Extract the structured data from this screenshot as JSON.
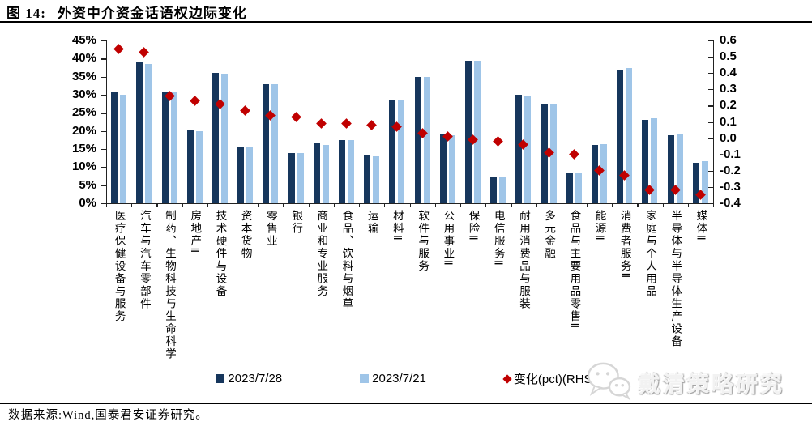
{
  "figure": {
    "label": "图 14:",
    "title": "外资中介资金话语权边际变化"
  },
  "chart_data": {
    "type": "bar",
    "title": "外资中介资金话语权边际变化",
    "grid": false,
    "legend_position": "bottom",
    "categories": [
      "医疗保健设备与服务",
      "汽车与汽车零部件",
      "制药、生物科技与生命科学",
      "房地产Ⅱ",
      "技术硬件与设备",
      "资本货物",
      "零售业",
      "银行",
      "商业和专业服务",
      "食品、饮料与烟草",
      "运输",
      "材料Ⅱ",
      "软件与服务",
      "公用事业Ⅱ",
      "保险Ⅱ",
      "电信服务Ⅱ",
      "耐用消费品与服装",
      "多元金融",
      "食品与主要用品零售Ⅱ",
      "能源Ⅱ",
      "消费者服务Ⅱ",
      "家庭与个人用品",
      "半导体与半导体生产设备",
      "媒体Ⅱ"
    ],
    "series": [
      {
        "name": "2023/7/28",
        "kind": "bar",
        "axis": "left",
        "unit": "%",
        "color": "#16365c",
        "values": [
          30.6,
          39.0,
          30.8,
          20.1,
          36.0,
          15.5,
          33.0,
          13.9,
          16.5,
          17.5,
          13.1,
          28.5,
          35.0,
          19.0,
          39.5,
          7.2,
          29.9,
          27.6,
          8.5,
          16.1,
          36.9,
          23.1,
          18.7,
          11.2
        ]
      },
      {
        "name": "2023/7/21",
        "kind": "bar",
        "axis": "left",
        "unit": "%",
        "color": "#9fc5e8",
        "values": [
          30.0,
          38.4,
          30.6,
          19.9,
          35.8,
          15.4,
          32.8,
          13.8,
          16.2,
          17.4,
          13.0,
          28.4,
          34.9,
          18.8,
          39.4,
          7.2,
          29.7,
          27.5,
          8.6,
          16.4,
          37.3,
          23.5,
          19.1,
          11.6
        ]
      },
      {
        "name": "变化(pct)(RHS)",
        "kind": "scatter-diamond",
        "axis": "right",
        "color": "#c00000",
        "values": [
          0.55,
          0.53,
          0.26,
          0.23,
          0.21,
          0.17,
          0.14,
          0.13,
          0.09,
          0.09,
          0.08,
          0.07,
          0.03,
          0.01,
          -0.01,
          -0.02,
          -0.04,
          -0.09,
          -0.1,
          -0.2,
          -0.23,
          -0.32,
          -0.32,
          -0.35
        ]
      }
    ],
    "left_axis": {
      "min": 0,
      "max": 45,
      "step": 5,
      "tick_labels": [
        "0%",
        "5%",
        "10%",
        "15%",
        "20%",
        "25%",
        "30%",
        "35%",
        "40%",
        "45%"
      ]
    },
    "right_axis": {
      "min": -0.4,
      "max": 0.6,
      "step": 0.1,
      "tick_labels": [
        "-0.4",
        "-0.3",
        "-0.2",
        "-0.1",
        "0.0",
        "0.1",
        "0.2",
        "0.3",
        "0.4",
        "0.5",
        "0.6"
      ]
    }
  },
  "footer": {
    "source": "数据来源:Wind,国泰君安证券研究。"
  },
  "watermark": {
    "icon": "wechat-icon",
    "text": "戴清策略研究"
  }
}
